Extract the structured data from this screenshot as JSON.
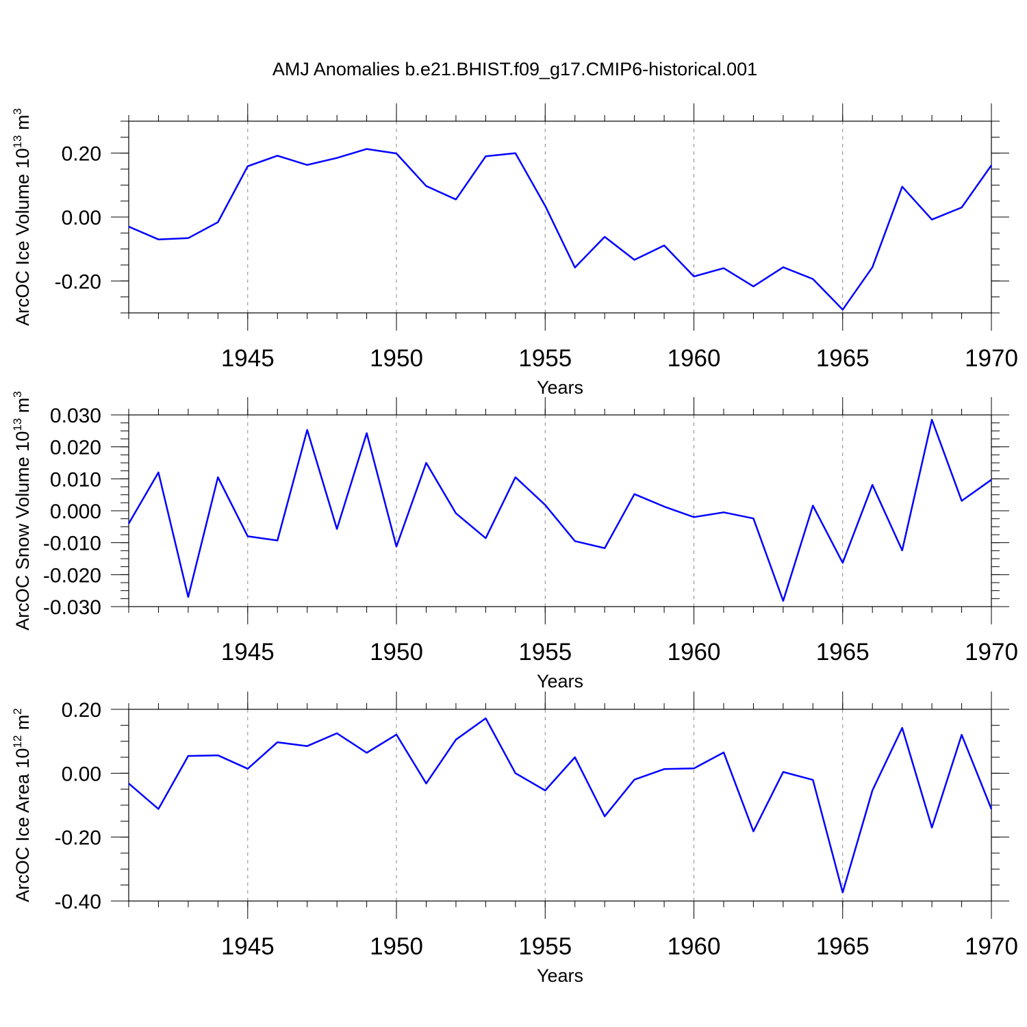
{
  "title": "AMJ Anomalies b.e21.BHIST.f09_g17.CMIP6-historical.001",
  "line_color": "#0000ff",
  "chart_data": [
    {
      "type": "line",
      "title": "AMJ Anomalies b.e21.BHIST.f09_g17.CMIP6-historical.001",
      "xlabel": "Years",
      "ylabel_base": "ArcOC Ice Volume 10",
      "ylabel_exp": "13",
      "ylabel_unit": " m",
      "ylabel_unit_exp": "3",
      "xlim": [
        1941,
        1970
      ],
      "ylim": [
        -0.3,
        0.3
      ],
      "xticks": [
        1945,
        1950,
        1955,
        1960,
        1965,
        1970
      ],
      "yticks": [
        -0.2,
        0.0,
        0.2
      ],
      "ytick_labels": [
        "-0.20",
        "0.00",
        "0.20"
      ],
      "yminor_step": 0.05,
      "vgrid": [
        1945,
        1950,
        1955,
        1960,
        1965
      ],
      "x": [
        1941,
        1942,
        1943,
        1944,
        1945,
        1946,
        1947,
        1948,
        1949,
        1950,
        1951,
        1952,
        1953,
        1954,
        1955,
        1956,
        1957,
        1958,
        1959,
        1960,
        1961,
        1962,
        1963,
        1964,
        1965,
        1966,
        1967,
        1968,
        1969,
        1970
      ],
      "values": [
        -0.03,
        -0.07,
        -0.066,
        -0.016,
        0.159,
        0.192,
        0.163,
        0.185,
        0.213,
        0.199,
        0.097,
        0.055,
        0.19,
        0.2,
        0.035,
        -0.158,
        -0.062,
        -0.134,
        -0.089,
        -0.186,
        -0.16,
        -0.217,
        -0.157,
        -0.194,
        -0.29,
        -0.157,
        0.095,
        -0.008,
        0.03,
        0.162
      ]
    },
    {
      "type": "line",
      "xlabel": "Years",
      "ylabel_base": "ArcOC Snow Volume 10",
      "ylabel_exp": "13",
      "ylabel_unit": " m",
      "ylabel_unit_exp": "3",
      "xlim": [
        1941,
        1970
      ],
      "ylim": [
        -0.03,
        0.03
      ],
      "xticks": [
        1945,
        1950,
        1955,
        1960,
        1965,
        1970
      ],
      "yticks": [
        -0.03,
        -0.02,
        -0.01,
        0.0,
        0.01,
        0.02,
        0.03
      ],
      "ytick_labels": [
        "-0.030",
        "-0.020",
        "-0.010",
        "0.000",
        "0.010",
        "0.020",
        "0.030"
      ],
      "yminor_step": 0.0025,
      "vgrid": [
        1945,
        1950,
        1955,
        1960,
        1965
      ],
      "x": [
        1941,
        1942,
        1943,
        1944,
        1945,
        1946,
        1947,
        1948,
        1949,
        1950,
        1951,
        1952,
        1953,
        1954,
        1955,
        1956,
        1957,
        1958,
        1959,
        1960,
        1961,
        1962,
        1963,
        1964,
        1965,
        1966,
        1967,
        1968,
        1969,
        1970
      ],
      "values": [
        -0.004,
        0.012,
        -0.027,
        0.0105,
        -0.008,
        -0.0093,
        0.0253,
        -0.0057,
        0.0243,
        -0.0112,
        0.015,
        -0.0008,
        -0.0086,
        0.0105,
        0.0018,
        -0.0095,
        -0.0117,
        0.0052,
        0.0013,
        -0.002,
        -0.0005,
        -0.0024,
        -0.0282,
        0.0016,
        -0.0163,
        0.0081,
        -0.0124,
        0.0285,
        0.0031,
        0.0097
      ]
    },
    {
      "type": "line",
      "xlabel": "Years",
      "ylabel_base": "ArcOC Ice Area 10",
      "ylabel_exp": "12",
      "ylabel_unit": " m",
      "ylabel_unit_exp": "2",
      "xlim": [
        1941,
        1970
      ],
      "ylim": [
        -0.4,
        0.2
      ],
      "xticks": [
        1945,
        1950,
        1955,
        1960,
        1965,
        1970
      ],
      "yticks": [
        -0.4,
        -0.2,
        0.0,
        0.2
      ],
      "ytick_labels": [
        "-0.40",
        "-0.20",
        "0.00",
        "0.20"
      ],
      "yminor_step": 0.05,
      "vgrid": [
        1945,
        1950,
        1955,
        1960,
        1965
      ],
      "x": [
        1941,
        1942,
        1943,
        1944,
        1945,
        1946,
        1947,
        1948,
        1949,
        1950,
        1951,
        1952,
        1953,
        1954,
        1955,
        1956,
        1957,
        1958,
        1959,
        1960,
        1961,
        1962,
        1963,
        1964,
        1965,
        1966,
        1967,
        1968,
        1969,
        1970
      ],
      "values": [
        -0.032,
        -0.112,
        0.054,
        0.056,
        0.014,
        0.097,
        0.085,
        0.125,
        0.064,
        0.121,
        -0.032,
        0.105,
        0.172,
        0.0,
        -0.054,
        0.05,
        -0.135,
        -0.02,
        0.013,
        0.015,
        0.065,
        -0.182,
        0.004,
        -0.021,
        -0.373,
        -0.054,
        0.142,
        -0.17,
        0.12,
        -0.112
      ]
    }
  ]
}
